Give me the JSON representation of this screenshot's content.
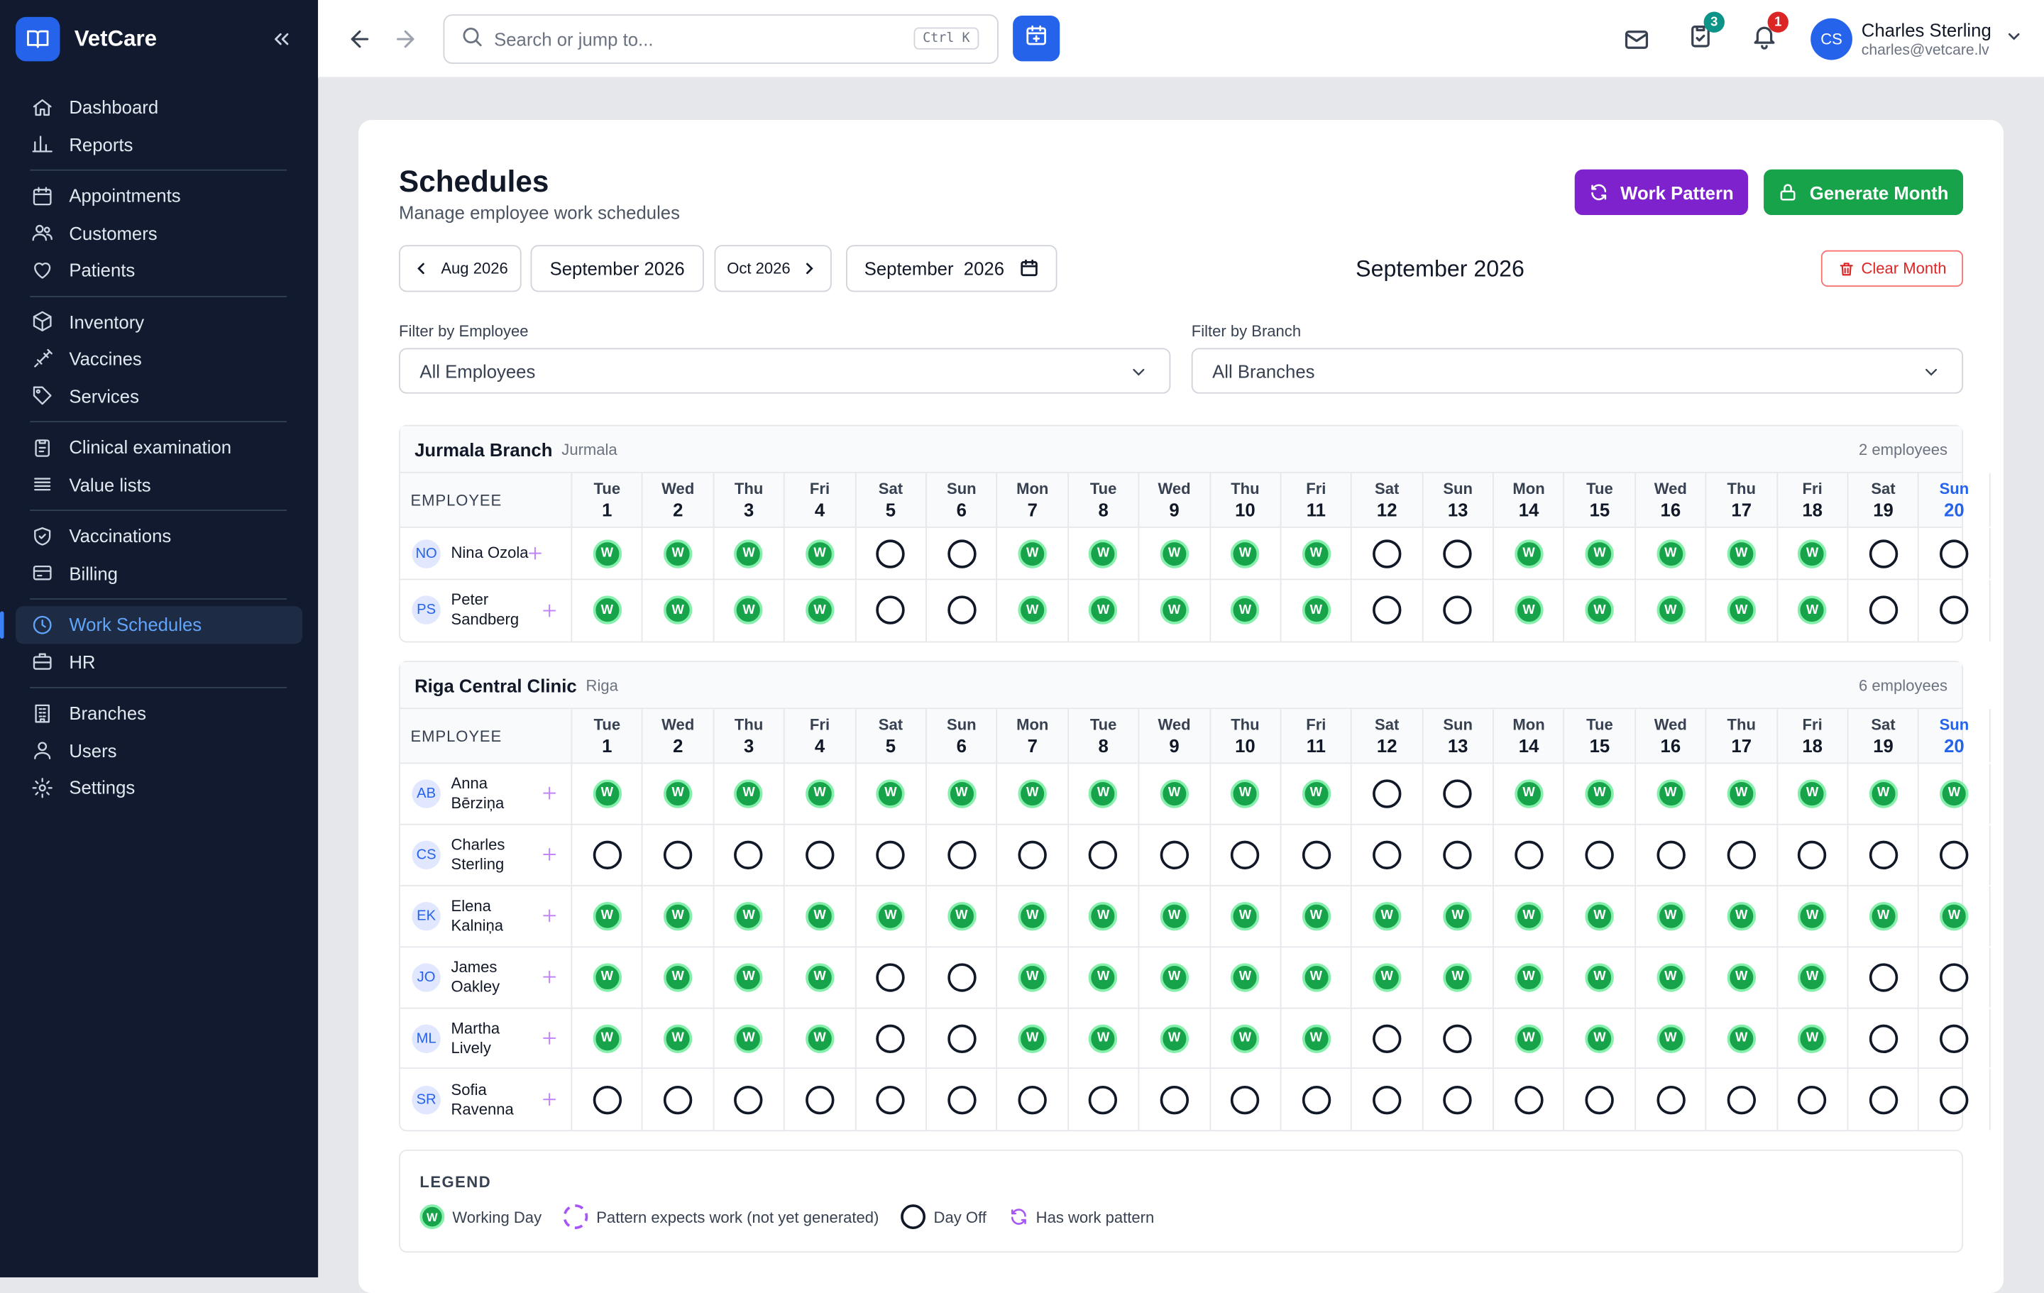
{
  "app": {
    "name": "VetCare"
  },
  "sidebar": {
    "groups": [
      [
        {
          "label": "Dashboard",
          "icon": "home-icon"
        },
        {
          "label": "Reports",
          "icon": "bar-chart-icon"
        }
      ],
      [
        {
          "label": "Appointments",
          "icon": "calendar-icon"
        },
        {
          "label": "Customers",
          "icon": "users-icon"
        },
        {
          "label": "Patients",
          "icon": "heart-icon"
        }
      ],
      [
        {
          "label": "Inventory",
          "icon": "box-icon"
        },
        {
          "label": "Vaccines",
          "icon": "syringe-icon"
        },
        {
          "label": "Services",
          "icon": "tag-icon"
        }
      ],
      [
        {
          "label": "Clinical examination",
          "icon": "clipboard-icon"
        },
        {
          "label": "Value lists",
          "icon": "list-icon"
        }
      ],
      [
        {
          "label": "Vaccinations",
          "icon": "shield-check-icon"
        },
        {
          "label": "Billing",
          "icon": "card-icon"
        }
      ],
      [
        {
          "label": "Work Schedules",
          "icon": "clock-icon",
          "active": true
        },
        {
          "label": "HR",
          "icon": "briefcase-icon"
        }
      ],
      [
        {
          "label": "Branches",
          "icon": "building-icon"
        },
        {
          "label": "Users",
          "icon": "user-icon"
        },
        {
          "label": "Settings",
          "icon": "gear-icon"
        }
      ]
    ]
  },
  "topbar": {
    "search_placeholder": "Search or jump to...",
    "search_shortcut": "Ctrl K",
    "tasks_badge": "3",
    "notifications_badge": "1",
    "user": {
      "initials": "CS",
      "name": "Charles Sterling",
      "email": "charles@vetcare.lv"
    }
  },
  "page": {
    "title": "Schedules",
    "subtitle": "Manage employee work schedules",
    "work_pattern_label": "Work Pattern",
    "generate_month_label": "Generate Month",
    "prev_month_label": "Aug 2026",
    "current_month_label": "September 2026",
    "next_month_label": "Oct 2026",
    "date_input_value": "September  2026",
    "month_title": "September 2026",
    "clear_month_label": "Clear Month",
    "filter_employee_label": "Filter by Employee",
    "filter_employee_value": "All Employees",
    "filter_branch_label": "Filter by Branch",
    "filter_branch_value": "All Branches",
    "employee_column_header": "EMPLOYEE",
    "working_mark": "W"
  },
  "days": [
    {
      "dn": "Tue",
      "dd": "1"
    },
    {
      "dn": "Wed",
      "dd": "2"
    },
    {
      "dn": "Thu",
      "dd": "3"
    },
    {
      "dn": "Fri",
      "dd": "4"
    },
    {
      "dn": "Sat",
      "dd": "5"
    },
    {
      "dn": "Sun",
      "dd": "6"
    },
    {
      "dn": "Mon",
      "dd": "7"
    },
    {
      "dn": "Tue",
      "dd": "8"
    },
    {
      "dn": "Wed",
      "dd": "9"
    },
    {
      "dn": "Thu",
      "dd": "10"
    },
    {
      "dn": "Fri",
      "dd": "11"
    },
    {
      "dn": "Sat",
      "dd": "12"
    },
    {
      "dn": "Sun",
      "dd": "13"
    },
    {
      "dn": "Mon",
      "dd": "14"
    },
    {
      "dn": "Tue",
      "dd": "15"
    },
    {
      "dn": "Wed",
      "dd": "16"
    },
    {
      "dn": "Thu",
      "dd": "17"
    },
    {
      "dn": "Fri",
      "dd": "18"
    },
    {
      "dn": "Sat",
      "dd": "19"
    },
    {
      "dn": "Sun",
      "dd": "20"
    }
  ],
  "branches": [
    {
      "name": "Jurmala Branch",
      "city": "Jurmala",
      "count": "2 employees",
      "employees": [
        {
          "initials": "NO",
          "name": "Nina Ozola",
          "days": "WWWWOOWWWWWOOWWWWWOO"
        },
        {
          "initials": "PS",
          "name": "Peter Sandberg",
          "days": "WWWWOOWWWWWOOWWWWWOO"
        }
      ]
    },
    {
      "name": "Riga Central Clinic",
      "city": "Riga",
      "count": "6 employees",
      "employees": [
        {
          "initials": "AB",
          "name": "Anna Bērziņa",
          "days": "WWWWWWWWWWWOOWWWWWWW"
        },
        {
          "initials": "CS",
          "name": "Charles Sterling",
          "days": "OOOOOOOOOOOOOOOOOOOO"
        },
        {
          "initials": "EK",
          "name": "Elena Kalniņa",
          "days": "WWWWWWWWWWWWWWWWWWWW"
        },
        {
          "initials": "JO",
          "name": "James Oakley",
          "days": "WWWWOOWWWWWWWWWWWWOO"
        },
        {
          "initials": "ML",
          "name": "Martha Lively",
          "days": "WWWWOOWWWWWOOWWWWWOO"
        },
        {
          "initials": "SR",
          "name": "Sofia Ravenna",
          "days": "OOOOOOOOOOOOOOOOOOOO"
        }
      ]
    }
  ],
  "legend": {
    "title": "LEGEND",
    "working_day": "Working Day",
    "pattern_expects": "Pattern expects work (not yet generated)",
    "day_off": "Day Off",
    "has_pattern": "Has work pattern"
  },
  "colors": {
    "accent": "#2563eb",
    "working": "#16a34a",
    "pattern": "#7e22ce",
    "danger": "#dc2626",
    "sidebar_bg": "#111a2e"
  }
}
